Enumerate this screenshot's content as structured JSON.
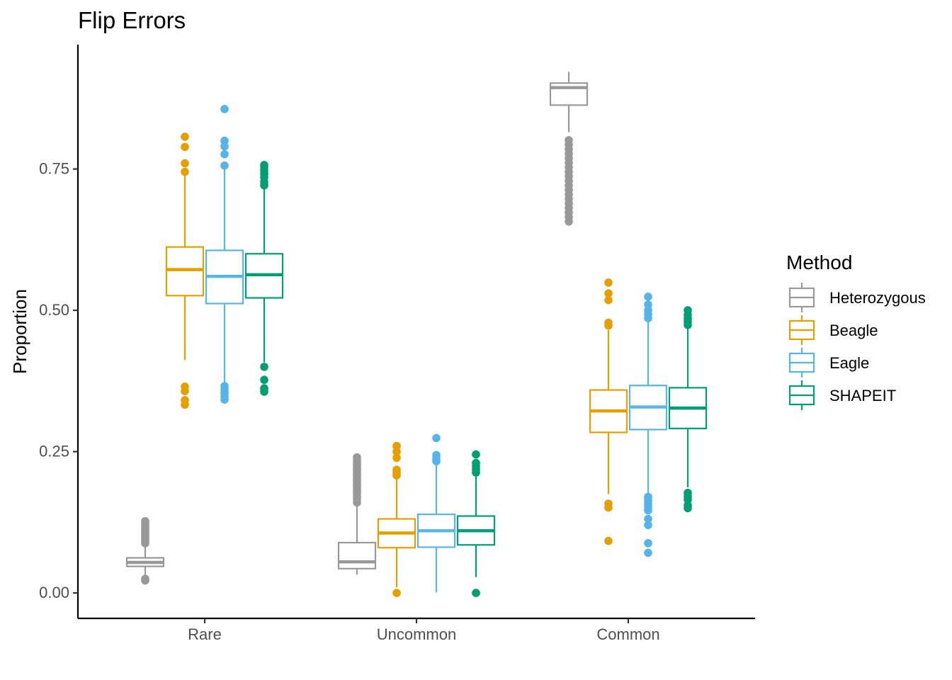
{
  "chart_data": {
    "type": "boxplot",
    "title": "Flip Errors",
    "xlabel": "",
    "ylabel": "Proportion",
    "categories": [
      "Rare",
      "Uncommon",
      "Common"
    ],
    "ylim": [
      -0.045,
      0.97
    ],
    "yticks": [
      0.0,
      0.25,
      0.5,
      0.75
    ],
    "ytick_labels": [
      "0.00",
      "0.25",
      "0.50",
      "0.75"
    ],
    "grid": false,
    "legend": {
      "title": "Method",
      "position": "right"
    },
    "series": [
      {
        "name": "Heterozygous",
        "color": "#999999",
        "boxes": [
          {
            "whisker_low": 0.022,
            "q1": 0.047,
            "median": 0.054,
            "q3": 0.062,
            "whisker_high": 0.086,
            "outliers": [
              0.022,
              0.025,
              0.088,
              0.091,
              0.094,
              0.097,
              0.1,
              0.103,
              0.106,
              0.109,
              0.112,
              0.115,
              0.118,
              0.121,
              0.124,
              0.127
            ]
          },
          {
            "whisker_low": 0.032,
            "q1": 0.043,
            "median": 0.055,
            "q3": 0.089,
            "whisker_high": 0.157,
            "outliers": [
              0.16,
              0.165,
              0.17,
              0.175,
              0.18,
              0.185,
              0.19,
              0.195,
              0.2,
              0.205,
              0.21,
              0.215,
              0.22,
              0.225,
              0.23,
              0.235,
              0.24
            ]
          },
          {
            "whisker_low": 0.815,
            "q1": 0.863,
            "median": 0.894,
            "q3": 0.902,
            "whisker_high": 0.922,
            "outliers": [
              0.657,
              0.665,
              0.673,
              0.681,
              0.689,
              0.697,
              0.705,
              0.713,
              0.721,
              0.729,
              0.737,
              0.745,
              0.753,
              0.761,
              0.769,
              0.777,
              0.785,
              0.793,
              0.801
            ]
          }
        ]
      },
      {
        "name": "Beagle",
        "color": "#E69F00",
        "boxes": [
          {
            "whisker_low": 0.412,
            "q1": 0.526,
            "median": 0.572,
            "q3": 0.612,
            "whisker_high": 0.74,
            "outliers": [
              0.333,
              0.341,
              0.357,
              0.365,
              0.745,
              0.76,
              0.789,
              0.807
            ]
          },
          {
            "whisker_low": 0.01,
            "q1": 0.08,
            "median": 0.106,
            "q3": 0.131,
            "whisker_high": 0.205,
            "outliers": [
              0.0,
              0.208,
              0.213,
              0.218,
              0.239,
              0.25,
              0.26
            ]
          },
          {
            "whisker_low": 0.175,
            "q1": 0.284,
            "median": 0.322,
            "q3": 0.359,
            "whisker_high": 0.465,
            "outliers": [
              0.092,
              0.151,
              0.158,
              0.473,
              0.478,
              0.518,
              0.53,
              0.549
            ]
          }
        ]
      },
      {
        "name": "Eagle",
        "color": "#56B4E9",
        "boxes": [
          {
            "whisker_low": 0.345,
            "q1": 0.512,
            "median": 0.56,
            "q3": 0.606,
            "whisker_high": 0.75,
            "outliers": [
              0.342,
              0.348,
              0.354,
              0.36,
              0.366,
              0.756,
              0.776,
              0.79,
              0.8,
              0.856
            ]
          },
          {
            "whisker_low": 0.001,
            "q1": 0.081,
            "median": 0.11,
            "q3": 0.139,
            "whisker_high": 0.23,
            "outliers": [
              0.233,
              0.238,
              0.244,
              0.274
            ]
          },
          {
            "whisker_low": 0.175,
            "q1": 0.289,
            "median": 0.329,
            "q3": 0.367,
            "whisker_high": 0.482,
            "outliers": [
              0.071,
              0.088,
              0.12,
              0.131,
              0.146,
              0.152,
              0.158,
              0.164,
              0.17,
              0.486,
              0.493,
              0.5,
              0.51,
              0.524
            ]
          }
        ]
      },
      {
        "name": "SHAPEIT",
        "color": "#009E73",
        "boxes": [
          {
            "whisker_low": 0.408,
            "q1": 0.522,
            "median": 0.563,
            "q3": 0.6,
            "whisker_high": 0.715,
            "outliers": [
              0.356,
              0.362,
              0.377,
              0.4,
              0.721,
              0.727,
              0.735,
              0.741,
              0.747,
              0.753,
              0.757
            ]
          },
          {
            "whisker_low": 0.028,
            "q1": 0.085,
            "median": 0.11,
            "q3": 0.136,
            "whisker_high": 0.208,
            "outliers": [
              0.0,
              0.213,
              0.219,
              0.225,
              0.23,
              0.245
            ]
          },
          {
            "whisker_low": 0.187,
            "q1": 0.291,
            "median": 0.327,
            "q3": 0.363,
            "whisker_high": 0.47,
            "outliers": [
              0.15,
              0.155,
              0.165,
              0.171,
              0.177,
              0.474,
              0.48,
              0.486,
              0.492,
              0.5
            ]
          }
        ]
      }
    ]
  }
}
